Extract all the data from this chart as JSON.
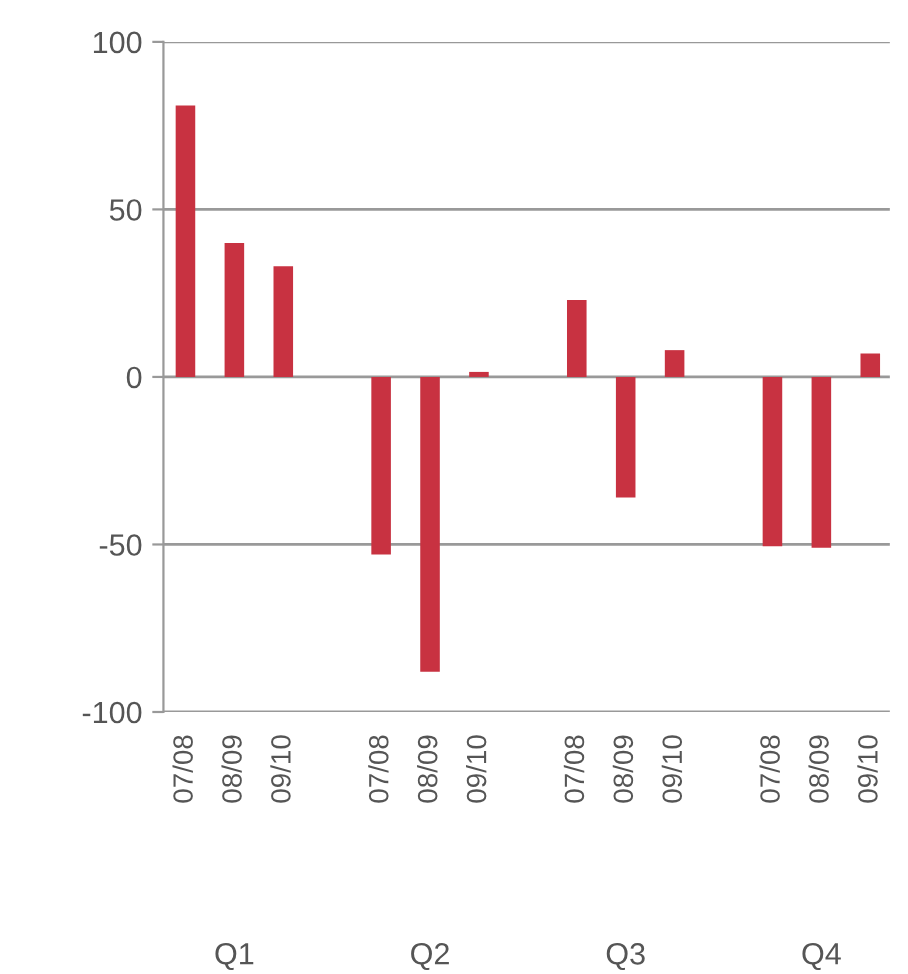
{
  "chart_data": {
    "type": "bar",
    "categories": [
      "07/08",
      "08/09",
      "09/10",
      null,
      "07/08",
      "08/09",
      "09/10",
      null,
      "07/08",
      "08/09",
      "09/10",
      null,
      "07/08",
      "08/09",
      "09/10"
    ],
    "values": [
      81,
      40,
      33,
      null,
      -53,
      -88,
      1.5,
      null,
      23,
      -36,
      8,
      null,
      -50.5,
      -51,
      7
    ],
    "color": "#c83241",
    "ylim": [
      -100,
      100
    ],
    "yticks": [
      -100,
      -50,
      0,
      50,
      100
    ],
    "grid": "y",
    "annotations": [
      "Q1",
      "Q2",
      "Q3",
      "Q4"
    ]
  }
}
